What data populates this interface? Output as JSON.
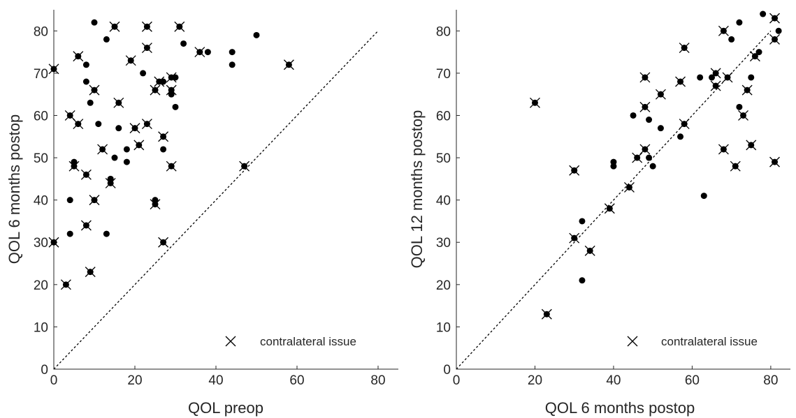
{
  "chart_data": [
    {
      "type": "scatter",
      "xlabel": "QOL preop",
      "ylabel": "QOL 6 months postop",
      "xlim": [
        0,
        85
      ],
      "ylim": [
        0,
        85
      ],
      "xticks": [
        0,
        20,
        40,
        60,
        80
      ],
      "yticks": [
        0,
        10,
        20,
        30,
        40,
        50,
        60,
        70,
        80
      ],
      "grid": false,
      "reference_line": "identity (y = x), dotted",
      "legend": {
        "entries": [
          {
            "marker": "x",
            "label": "contralateral issue"
          }
        ],
        "position": "bottom-right"
      },
      "series": [
        {
          "marker": "dot",
          "points": [
            [
              10,
              82
            ],
            [
              13,
              78
            ],
            [
              8,
              72
            ],
            [
              8,
              68
            ],
            [
              9,
              63
            ],
            [
              11,
              58
            ],
            [
              16,
              57
            ],
            [
              5,
              49
            ],
            [
              14,
              45
            ],
            [
              4,
              40
            ],
            [
              4,
              32
            ],
            [
              13,
              32
            ],
            [
              18,
              52
            ],
            [
              18,
              49
            ],
            [
              15,
              50
            ],
            [
              22,
              70
            ],
            [
              27,
              52
            ],
            [
              25,
              40
            ],
            [
              30,
              62
            ],
            [
              29,
              65
            ],
            [
              30,
              69
            ],
            [
              32,
              77
            ],
            [
              38,
              75
            ],
            [
              44,
              75
            ],
            [
              44,
              72
            ],
            [
              50,
              79
            ],
            [
              27,
              68
            ]
          ]
        },
        {
          "marker": "dot+x",
          "points": [
            [
              0,
              71
            ],
            [
              0,
              30
            ],
            [
              3,
              20
            ],
            [
              4,
              60
            ],
            [
              6,
              58
            ],
            [
              6,
              74
            ],
            [
              5,
              48
            ],
            [
              8,
              46
            ],
            [
              8,
              34
            ],
            [
              9,
              23
            ],
            [
              10,
              66
            ],
            [
              10,
              40
            ],
            [
              12,
              52
            ],
            [
              14,
              44
            ],
            [
              15,
              81
            ],
            [
              16,
              63
            ],
            [
              19,
              73
            ],
            [
              20,
              57
            ],
            [
              21,
              53
            ],
            [
              23,
              81
            ],
            [
              23,
              76
            ],
            [
              23,
              58
            ],
            [
              25,
              66
            ],
            [
              25,
              39
            ],
            [
              26,
              68
            ],
            [
              27,
              55
            ],
            [
              27,
              30
            ],
            [
              29,
              48
            ],
            [
              29,
              69
            ],
            [
              29,
              66
            ],
            [
              31,
              81
            ],
            [
              36,
              75
            ],
            [
              47,
              48
            ],
            [
              58,
              72
            ]
          ]
        }
      ]
    },
    {
      "type": "scatter",
      "xlabel": "QOL 6 months postop",
      "ylabel": "QOL 12 months postop",
      "xlim": [
        0,
        85
      ],
      "ylim": [
        0,
        85
      ],
      "xticks": [
        0,
        20,
        40,
        60,
        80
      ],
      "yticks": [
        0,
        10,
        20,
        30,
        40,
        50,
        60,
        70,
        80
      ],
      "grid": false,
      "reference_line": "identity (y = x), dotted",
      "legend": {
        "entries": [
          {
            "marker": "x",
            "label": "contralateral issue"
          }
        ],
        "position": "bottom-right"
      },
      "series": [
        {
          "marker": "dot",
          "points": [
            [
              78,
              84
            ],
            [
              72,
              82
            ],
            [
              82,
              80
            ],
            [
              70,
              78
            ],
            [
              77,
              75
            ],
            [
              65,
              69
            ],
            [
              75,
              69
            ],
            [
              62,
              69
            ],
            [
              72,
              62
            ],
            [
              45,
              60
            ],
            [
              49,
              59
            ],
            [
              52,
              57
            ],
            [
              57,
              55
            ],
            [
              40,
              49
            ],
            [
              40,
              48
            ],
            [
              50,
              48
            ],
            [
              49,
              50
            ],
            [
              63,
              41
            ],
            [
              32,
              35
            ],
            [
              32,
              21
            ]
          ]
        },
        {
          "marker": "dot+x",
          "points": [
            [
              81,
              83
            ],
            [
              68,
              80
            ],
            [
              81,
              78
            ],
            [
              58,
              76
            ],
            [
              76,
              74
            ],
            [
              66,
              70
            ],
            [
              69,
              69
            ],
            [
              48,
              69
            ],
            [
              57,
              68
            ],
            [
              66,
              67
            ],
            [
              74,
              66
            ],
            [
              52,
              65
            ],
            [
              20,
              63
            ],
            [
              48,
              62
            ],
            [
              73,
              60
            ],
            [
              58,
              58
            ],
            [
              75,
              53
            ],
            [
              68,
              52
            ],
            [
              48,
              52
            ],
            [
              46,
              50
            ],
            [
              81,
              49
            ],
            [
              71,
              48
            ],
            [
              30,
              47
            ],
            [
              44,
              43
            ],
            [
              39,
              38
            ],
            [
              30,
              31
            ],
            [
              34,
              28
            ],
            [
              23,
              13
            ]
          ]
        }
      ]
    }
  ]
}
